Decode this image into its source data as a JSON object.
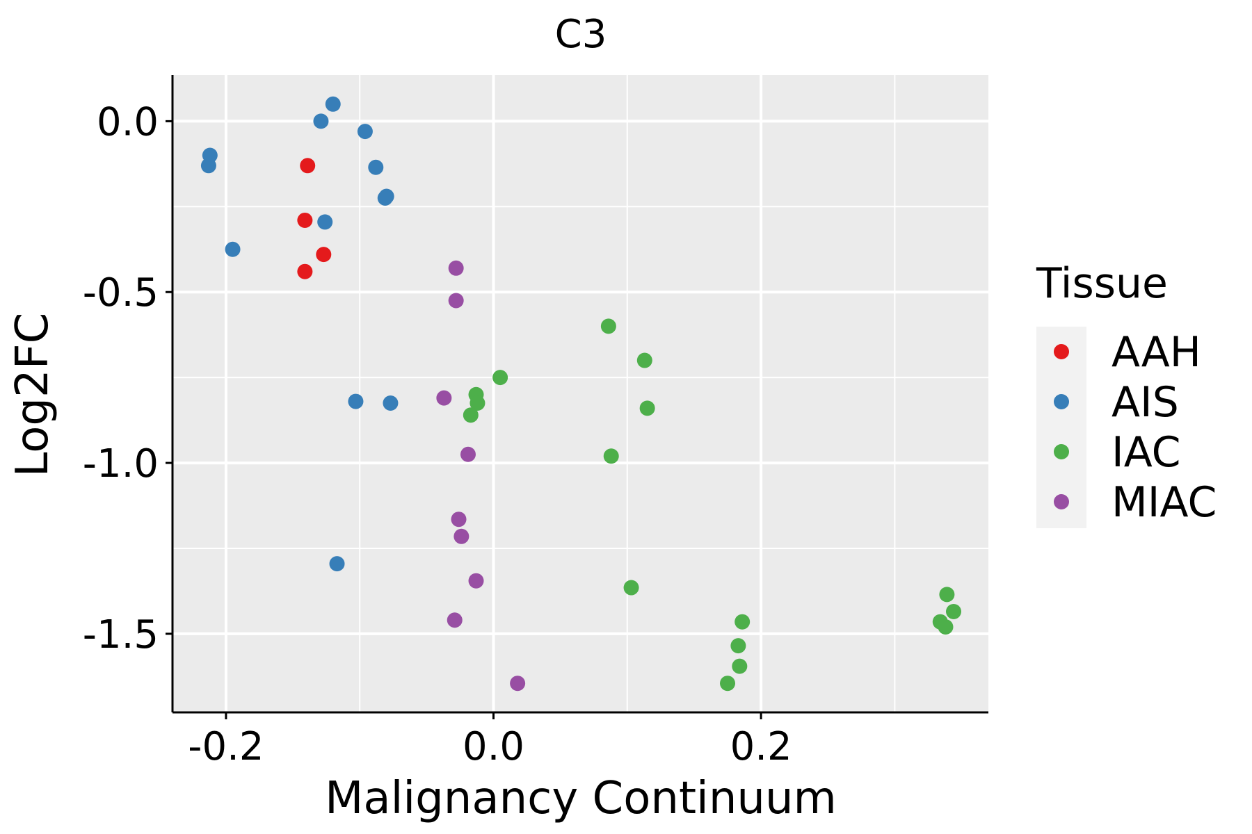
{
  "chart_data": {
    "type": "scatter",
    "title": "C3",
    "xlabel": "Malignancy Continuum",
    "ylabel": "Log2FC",
    "xlim": [
      -0.24,
      0.37
    ],
    "ylim": [
      -1.73,
      0.135
    ],
    "xticks": [
      -0.2,
      0.0,
      0.2
    ],
    "xtick_labels": [
      "-0.2",
      "0.0",
      "0.2"
    ],
    "yticks": [
      0.0,
      -0.5,
      -1.0,
      -1.5
    ],
    "ytick_labels": [
      "0.0",
      "-0.5",
      "-1.0",
      "-1.5"
    ],
    "grid": true,
    "legend": {
      "title": "Tissue",
      "position": "right",
      "entries": [
        "AAH",
        "AIS",
        "IAC",
        "MIAC"
      ]
    },
    "colors": {
      "AAH": "#e41a1c",
      "AIS": "#377eb8",
      "IAC": "#4daf4a",
      "MIAC": "#984ea3",
      "panel": "#ebebeb",
      "grid": "#ffffff"
    },
    "series": [
      {
        "name": "AAH",
        "points": [
          [
            -0.139,
            -0.13
          ],
          [
            -0.141,
            -0.29
          ],
          [
            -0.127,
            -0.39
          ],
          [
            -0.141,
            -0.44
          ]
        ]
      },
      {
        "name": "AIS",
        "points": [
          [
            -0.12,
            0.05
          ],
          [
            -0.129,
            0.0
          ],
          [
            -0.096,
            -0.03
          ],
          [
            -0.212,
            -0.1
          ],
          [
            -0.213,
            -0.13
          ],
          [
            -0.088,
            -0.135
          ],
          [
            -0.08,
            -0.22
          ],
          [
            -0.081,
            -0.225
          ],
          [
            -0.126,
            -0.295
          ],
          [
            -0.195,
            -0.375
          ],
          [
            -0.103,
            -0.82
          ],
          [
            -0.077,
            -0.825
          ],
          [
            -0.117,
            -1.295
          ]
        ]
      },
      {
        "name": "IAC",
        "points": [
          [
            0.086,
            -0.6
          ],
          [
            0.113,
            -0.7
          ],
          [
            0.005,
            -0.75
          ],
          [
            -0.013,
            -0.8
          ],
          [
            -0.012,
            -0.825
          ],
          [
            -0.017,
            -0.86
          ],
          [
            0.115,
            -0.84
          ],
          [
            0.088,
            -0.98
          ],
          [
            0.103,
            -1.365
          ],
          [
            0.339,
            -1.385
          ],
          [
            0.344,
            -1.435
          ],
          [
            0.334,
            -1.465
          ],
          [
            0.338,
            -1.48
          ],
          [
            0.186,
            -1.465
          ],
          [
            0.183,
            -1.535
          ],
          [
            0.184,
            -1.595
          ],
          [
            0.175,
            -1.645
          ]
        ]
      },
      {
        "name": "MIAC",
        "points": [
          [
            -0.028,
            -0.43
          ],
          [
            -0.028,
            -0.525
          ],
          [
            -0.037,
            -0.81
          ],
          [
            -0.019,
            -0.975
          ],
          [
            -0.026,
            -1.165
          ],
          [
            -0.024,
            -1.215
          ],
          [
            -0.013,
            -1.345
          ],
          [
            -0.029,
            -1.46
          ],
          [
            0.018,
            -1.645
          ]
        ]
      }
    ]
  }
}
